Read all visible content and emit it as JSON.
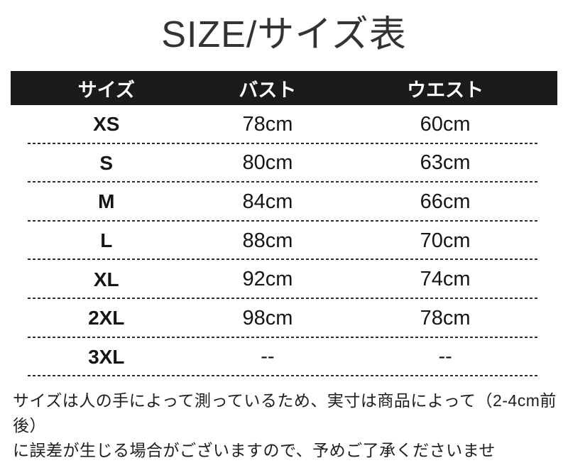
{
  "title": "SIZE/サイズ表",
  "chart_data": {
    "type": "table",
    "title": "SIZE/サイズ表",
    "columns": [
      "サイズ",
      "バスト",
      "ウエスト"
    ],
    "rows": [
      [
        "XS",
        "78cm",
        "60cm"
      ],
      [
        "S",
        "80cm",
        "63cm"
      ],
      [
        "M",
        "84cm",
        "66cm"
      ],
      [
        "L",
        "88cm",
        "70cm"
      ],
      [
        "XL",
        "92cm",
        "74cm"
      ],
      [
        "2XL",
        "98cm",
        "78cm"
      ],
      [
        "3XL",
        "--",
        "--"
      ]
    ],
    "unit": "cm",
    "layout": {
      "header_bg": "#1b1b1b",
      "header_text_color": "#ffffff",
      "row_separator_style": "dashed",
      "row_separator_color": "#2c2c2c",
      "background": "#ffffff"
    }
  },
  "note": {
    "lines": [
      "サイズは人の手によって測っているため、実寸は商品によって（2-4cm前後）",
      "に誤差が生じる場合がございますので、予めご了承くださいませ"
    ]
  }
}
